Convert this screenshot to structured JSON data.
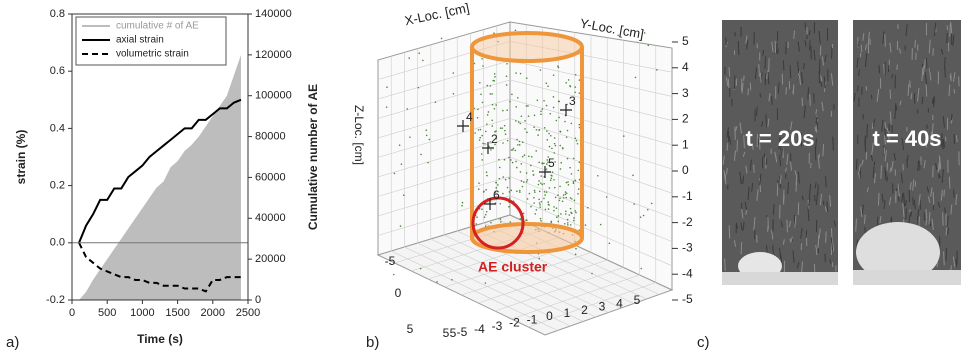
{
  "chart_data": {
    "type": "line",
    "xlabel": "Time (s)",
    "ylabel": "strain (%)",
    "y2label": "Cumulative number of AE",
    "x": [
      100,
      200,
      300,
      400,
      500,
      600,
      700,
      800,
      900,
      1000,
      1100,
      1200,
      1300,
      1400,
      1500,
      1600,
      1700,
      1800,
      1900,
      2000,
      2100,
      2200,
      2300,
      2400
    ],
    "series": [
      {
        "name": "cumulative # of AE",
        "color": "#bdbdbd",
        "axis": "y2",
        "style": "area",
        "values": [
          0,
          4000,
          10000,
          15000,
          20000,
          25000,
          30000,
          35000,
          40000,
          45000,
          50000,
          55000,
          58000,
          65000,
          68000,
          73000,
          76000,
          80000,
          85000,
          90000,
          95000,
          100000,
          110000,
          120000
        ]
      },
      {
        "name": "axial strain",
        "color": "#000000",
        "style": "solid",
        "values": [
          0.0,
          0.06,
          0.1,
          0.15,
          0.15,
          0.19,
          0.19,
          0.23,
          0.25,
          0.27,
          0.3,
          0.32,
          0.34,
          0.36,
          0.38,
          0.4,
          0.4,
          0.43,
          0.43,
          0.45,
          0.47,
          0.47,
          0.49,
          0.5
        ]
      },
      {
        "name": "volumetric strain",
        "color": "#000000",
        "style": "dashed",
        "values": [
          0.0,
          -0.05,
          -0.07,
          -0.09,
          -0.1,
          -0.11,
          -0.12,
          -0.12,
          -0.13,
          -0.13,
          -0.14,
          -0.14,
          -0.15,
          -0.15,
          -0.15,
          -0.16,
          -0.16,
          -0.16,
          -0.17,
          -0.13,
          -0.13,
          -0.12,
          -0.12,
          -0.12
        ]
      }
    ],
    "xlim": [
      0,
      2500
    ],
    "xticks": [
      0,
      500,
      1000,
      1500,
      2000,
      2500
    ],
    "ylim": [
      -0.2,
      0.8
    ],
    "yticks": [
      -0.2,
      {
        "value": 0,
        "label": "0.0"
      },
      0.2,
      0.4,
      0.6,
      0.8
    ],
    "y2lim": [
      0,
      140000
    ],
    "y2ticks": [
      0,
      20000,
      40000,
      60000,
      80000,
      100000,
      120000,
      140000
    ],
    "legend": "upper left"
  },
  "panel_b": {
    "x_label": "X-Loc. [cm]",
    "y_label": "Y-Loc. [cm]",
    "z_label": "Z-Loc. [cm]",
    "annotation": "AE cluster",
    "z_ticks": [
      "5",
      "4",
      "3",
      "2",
      "1",
      "0",
      "-1",
      "-2",
      "-3",
      "-4",
      "-5"
    ],
    "y_ticks": [
      "-5",
      "0",
      "5"
    ],
    "x_ticks": [
      "5",
      "5",
      "-5",
      "-4",
      "-3",
      "-2",
      "-1",
      "0",
      "1",
      "2",
      "3",
      "4",
      "5"
    ],
    "sensors": [
      "4",
      "2",
      "3",
      "5",
      "6"
    ]
  },
  "panel_c": {
    "frames": [
      "t = 20s",
      "t = 40s"
    ]
  },
  "panel_labels": [
    "a)",
    "b)",
    "c)"
  ]
}
